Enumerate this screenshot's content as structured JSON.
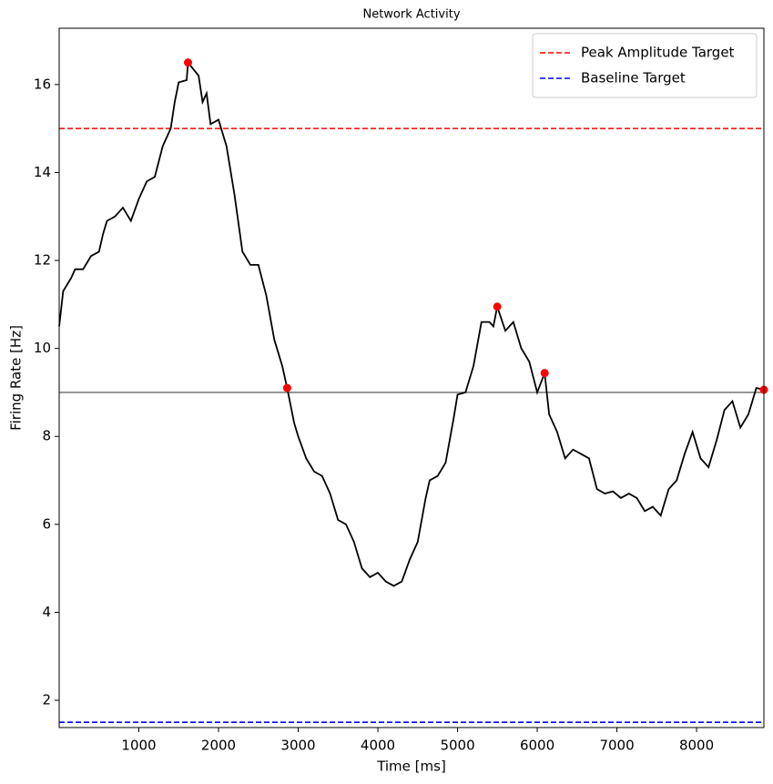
{
  "chart_data": {
    "type": "line",
    "title": "Network Activity",
    "x_label": "Time [ms]",
    "y_label": "Firing Rate [Hz]",
    "xlim": [
      0,
      8845
    ],
    "ylim": [
      1.38,
      17.28
    ],
    "xticks": [
      1000,
      2000,
      3000,
      4000,
      5000,
      6000,
      7000,
      8000
    ],
    "yticks": [
      2,
      4,
      6,
      8,
      10,
      12,
      14,
      16
    ],
    "legend": "upper right",
    "series": [
      {
        "color": "#000000",
        "x": [
          0,
          50,
          150,
          200,
          300,
          400,
          500,
          550,
          600,
          700,
          800,
          900,
          1000,
          1100,
          1200,
          1300,
          1400,
          1450,
          1500,
          1600,
          1617,
          1750,
          1800,
          1850,
          1900,
          2000,
          2100,
          2200,
          2300,
          2400,
          2500,
          2600,
          2700,
          2800,
          2861,
          2950,
          3000,
          3100,
          3200,
          3300,
          3400,
          3500,
          3600,
          3700,
          3800,
          3900,
          4000,
          4100,
          4200,
          4300,
          4400,
          4500,
          4600,
          4650,
          4750,
          4850,
          4950,
          5000,
          5100,
          5200,
          5300,
          5400,
          5450,
          5498,
          5600,
          5700,
          5800,
          5900,
          6000,
          6093,
          6150,
          6250,
          6350,
          6450,
          6550,
          6650,
          6750,
          6850,
          6950,
          7050,
          7150,
          7250,
          7350,
          7450,
          7550,
          7650,
          7750,
          7850,
          7950,
          8050,
          8150,
          8250,
          8350,
          8450,
          8550,
          8650,
          8750,
          8845
        ],
        "values": [
          10.5,
          11.3,
          11.6,
          11.8,
          11.8,
          12.1,
          12.2,
          12.6,
          12.9,
          13.0,
          13.2,
          12.9,
          13.4,
          13.8,
          13.9,
          14.6,
          15.0,
          15.6,
          16.05,
          16.1,
          16.5,
          16.2,
          15.6,
          15.8,
          15.1,
          15.2,
          14.6,
          13.5,
          12.2,
          11.9,
          11.9,
          11.2,
          10.2,
          9.6,
          9.1,
          8.3,
          8.0,
          7.5,
          7.2,
          7.1,
          6.7,
          6.1,
          6.0,
          5.6,
          5.0,
          4.8,
          4.9,
          4.7,
          4.6,
          4.7,
          5.2,
          5.6,
          6.6,
          7.0,
          7.1,
          7.4,
          8.4,
          8.95,
          9.0,
          9.6,
          10.6,
          10.6,
          10.5,
          10.95,
          10.4,
          10.6,
          10.0,
          9.7,
          9.0,
          9.44,
          8.5,
          8.1,
          7.5,
          7.7,
          7.6,
          7.5,
          6.8,
          6.7,
          6.75,
          6.6,
          6.7,
          6.6,
          6.3,
          6.4,
          6.2,
          6.8,
          7.0,
          7.6,
          8.1,
          7.5,
          7.3,
          7.9,
          8.6,
          8.8,
          8.2,
          8.5,
          9.1,
          9.06
        ]
      }
    ],
    "peaks": {
      "color": "#ff0000",
      "x": [
        1617,
        2861,
        5498,
        6093,
        8845
      ],
      "values": [
        16.5,
        9.1,
        10.95,
        9.44,
        9.06
      ]
    },
    "reference_lines": [
      {
        "name": "Peak Amplitude Target",
        "value": 15,
        "color": "#ff0000",
        "style": "dashed"
      },
      {
        "name": "Baseline Target",
        "value": 1.5,
        "color": "#0000ff",
        "style": "dashed"
      },
      {
        "value": 9,
        "color": "#808080",
        "style": "solid"
      }
    ]
  }
}
